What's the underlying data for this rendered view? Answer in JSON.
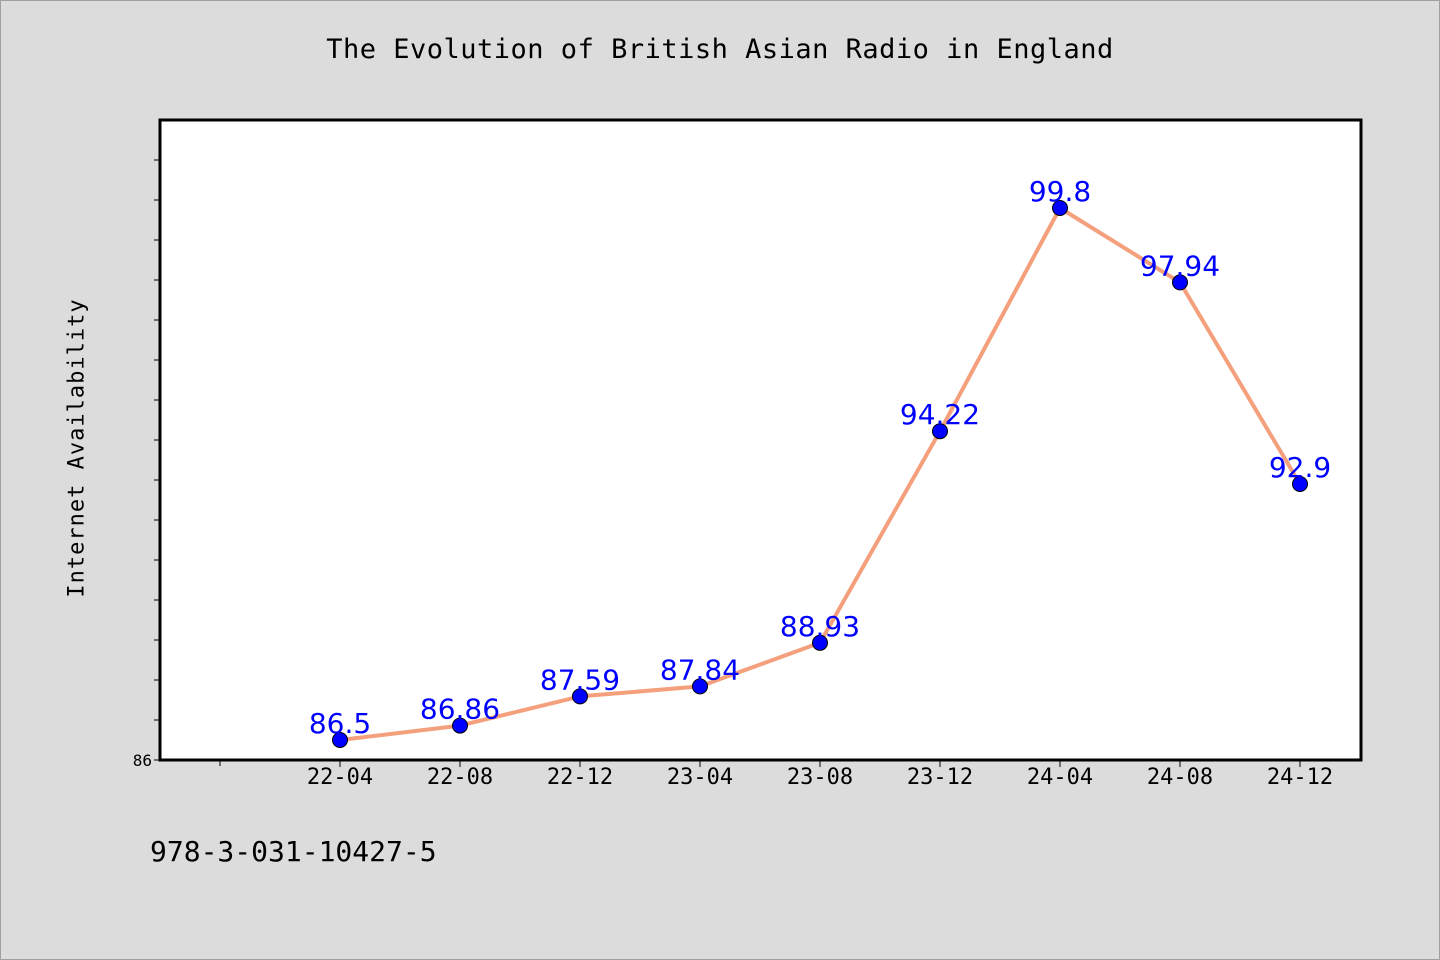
{
  "chart_data": {
    "type": "line",
    "title": "The Evolution of British Asian Radio in England",
    "xlabel": "",
    "ylabel": "Internet Availability",
    "categories": [
      "22-04",
      "22-08",
      "22-12",
      "23-04",
      "23-08",
      "23-12",
      "24-04",
      "24-08",
      "24-12"
    ],
    "series": [
      {
        "values": [
          86.5,
          86.86,
          87.59,
          87.84,
          88.93,
          94.22,
          99.8,
          97.94,
          92.9
        ]
      }
    ],
    "ylim": [
      86,
      102
    ],
    "y_tick_labels": [
      "86"
    ],
    "grid": false,
    "data_labels": [
      "86.5",
      "86.86",
      "87.59",
      "87.84",
      "88.93",
      "94.22",
      "99.8",
      "97.94",
      "92.9"
    ],
    "line_color": "#f4a07c",
    "marker_color": "#0000ff",
    "label_color": "#0000ff"
  },
  "footnote": "978-3-031-10427-5"
}
